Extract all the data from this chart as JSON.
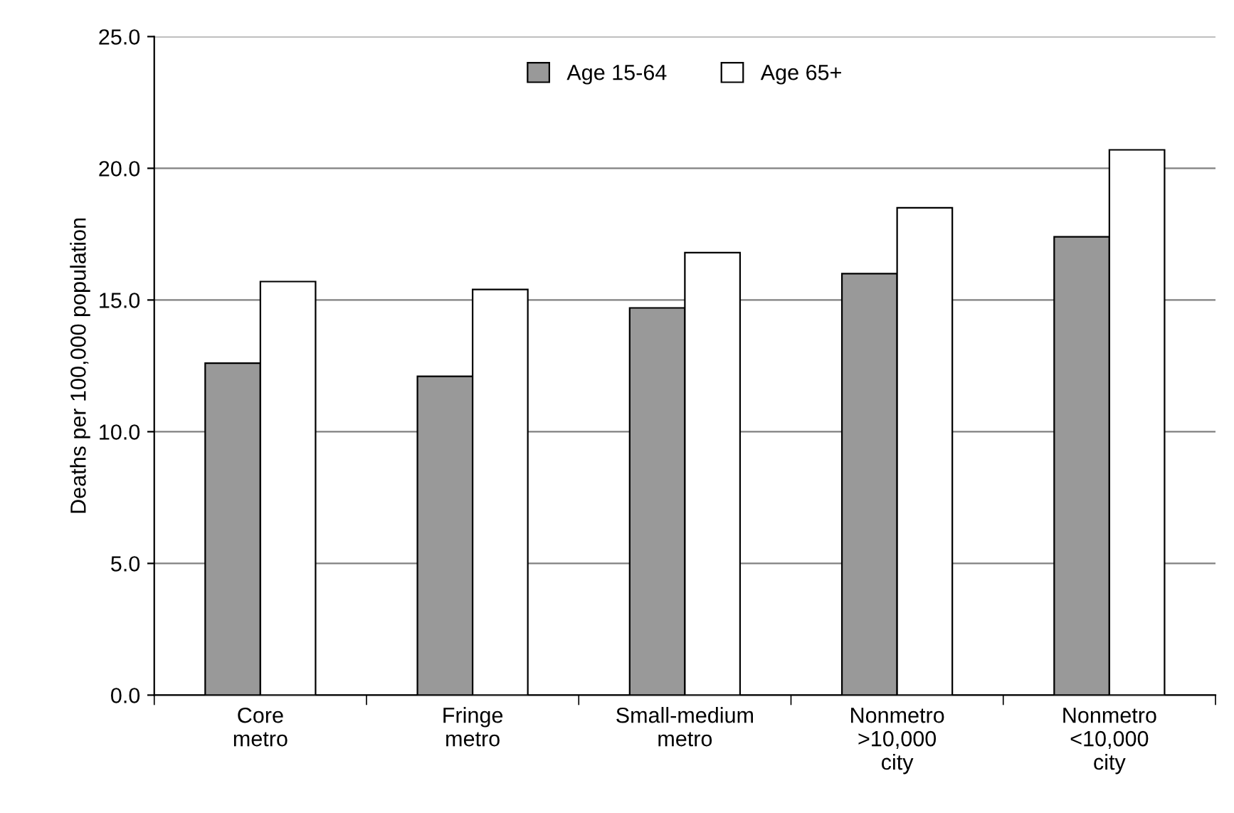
{
  "chart_data": {
    "type": "bar",
    "ylabel": "Deaths per 100,000 population",
    "categories": [
      "Core\nmetro",
      "Fringe\nmetro",
      "Small-medium\nmetro",
      "Nonmetro\n>10,000\ncity",
      "Nonmetro\n<10,000\ncity"
    ],
    "series": [
      {
        "name": "Age 15-64",
        "color": "#999999",
        "values": [
          12.6,
          12.1,
          14.7,
          16.0,
          17.4
        ]
      },
      {
        "name": "Age 65+",
        "color": "#ffffff",
        "values": [
          15.7,
          15.4,
          16.8,
          18.5,
          20.7
        ]
      }
    ],
    "ylim": [
      0,
      25
    ],
    "yticks": [
      {
        "value": 0,
        "label": "0.0"
      },
      {
        "value": 5,
        "label": "5.0"
      },
      {
        "value": 10,
        "label": "10.0"
      },
      {
        "value": 15,
        "label": "15.0"
      },
      {
        "value": 20,
        "label": "20.0"
      },
      {
        "value": 25,
        "label": "25.0"
      }
    ],
    "grid": "y",
    "legend": "top"
  }
}
